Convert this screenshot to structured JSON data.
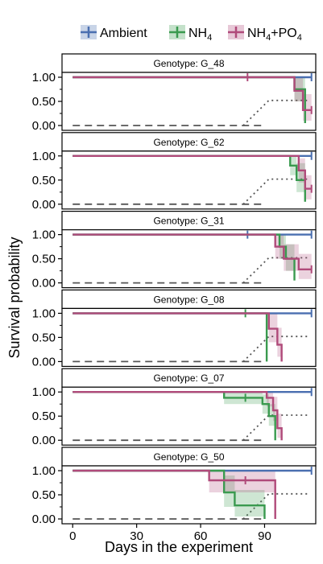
{
  "chart_data": {
    "type": "line",
    "subtype": "kaplan-meier survival step curves, faceted",
    "xlabel": "Days in the experiment",
    "ylabel": "Survival probability",
    "xlim": [
      -5,
      114
    ],
    "ylim": [
      -0.1,
      1.1
    ],
    "x_ticks": [
      "0",
      "30",
      "60",
      "90"
    ],
    "x_tick_values": [
      0,
      30,
      60,
      90
    ],
    "y_ticks": [
      "0.00",
      "0.50",
      "1.00"
    ],
    "y_tick_values": [
      0,
      0.5,
      1.0
    ],
    "legend": {
      "placement": "top",
      "items": [
        {
          "key": "ambient",
          "label": "Ambient",
          "sub": "",
          "plus": "",
          "sub2": "",
          "color": "#4a6fb0"
        },
        {
          "key": "nh4",
          "label": "NH",
          "sub": "4",
          "plus": "",
          "sub2": "",
          "color": "#3a9a4f"
        },
        {
          "key": "nh4po4",
          "label": "NH",
          "sub": "4",
          "plus": "+PO",
          "sub2": "4",
          "color": "#b04a7a"
        }
      ]
    },
    "reference_line": {
      "style": "dotted",
      "color": "#555555",
      "x": [
        80,
        92,
        110
      ],
      "y": [
        0,
        0.52,
        0.52
      ]
    },
    "censored_baseline": {
      "style": "dashed",
      "color": "#555555",
      "x": [
        0,
        90
      ],
      "y": 0
    },
    "facets": [
      {
        "strip": "Genotype: G_48",
        "series": [
          {
            "name": "Ambient",
            "x": [
              0,
              112
            ],
            "y": [
              1.0,
              1.0
            ],
            "censor": [
              112
            ]
          },
          {
            "name": "NH4",
            "x": [
              0,
              104,
              109
            ],
            "y": [
              1.0,
              0.75,
              0.05
            ],
            "band_lo": [
              1.0,
              0.5,
              0.0
            ],
            "band_hi": [
              1.0,
              1.0,
              0.3
            ],
            "censor": []
          },
          {
            "name": "NH4+PO4",
            "x": [
              0,
              104,
              108,
              112
            ],
            "y": [
              1.0,
              0.72,
              0.32,
              0.32
            ],
            "band_lo": [
              1.0,
              0.5,
              0.1,
              0.1
            ],
            "band_hi": [
              1.0,
              1.0,
              0.65,
              0.65
            ],
            "censor": [
              82,
              112
            ]
          }
        ]
      },
      {
        "strip": "Genotype: G_62",
        "series": [
          {
            "name": "Ambient",
            "x": [
              0,
              112
            ],
            "y": [
              1.0,
              1.0
            ],
            "censor": [
              112
            ]
          },
          {
            "name": "NH4",
            "x": [
              0,
              102,
              105,
              109
            ],
            "y": [
              1.0,
              0.8,
              0.5,
              0.05
            ],
            "band_lo": [
              1.0,
              0.6,
              0.25,
              0.0
            ],
            "band_hi": [
              1.0,
              1.0,
              0.85,
              0.3
            ],
            "censor": []
          },
          {
            "name": "NH4+PO4",
            "x": [
              0,
              106,
              109,
              112
            ],
            "y": [
              1.0,
              0.7,
              0.32,
              0.32
            ],
            "band_lo": [
              1.0,
              0.45,
              0.1,
              0.1
            ],
            "band_hi": [
              1.0,
              0.95,
              0.6,
              0.6
            ],
            "censor": [
              112
            ]
          }
        ]
      },
      {
        "strip": "Genotype: G_31",
        "series": [
          {
            "name": "Ambient",
            "x": [
              0,
              112
            ],
            "y": [
              1.0,
              1.0
            ],
            "censor": [
              82,
              112
            ]
          },
          {
            "name": "NH4",
            "x": [
              0,
              97,
              100,
              104
            ],
            "y": [
              1.0,
              0.75,
              0.5,
              0.05
            ],
            "band_lo": [
              1.0,
              0.5,
              0.25,
              0.0
            ],
            "band_hi": [
              1.0,
              1.0,
              0.8,
              0.3
            ],
            "censor": []
          },
          {
            "name": "NH4+PO4",
            "x": [
              0,
              95,
              99,
              106,
              112
            ],
            "y": [
              1.0,
              0.75,
              0.5,
              0.28,
              0.28
            ],
            "band_lo": [
              1.0,
              0.5,
              0.25,
              0.08,
              0.08
            ],
            "band_hi": [
              1.0,
              1.0,
              0.8,
              0.6,
              0.6
            ],
            "censor": [
              112
            ]
          }
        ]
      },
      {
        "strip": "Genotype: G_08",
        "series": [
          {
            "name": "Ambient",
            "x": [
              0,
              112
            ],
            "y": [
              1.0,
              1.0
            ],
            "censor": [
              112
            ]
          },
          {
            "name": "NH4",
            "x": [
              0,
              91
            ],
            "y": [
              1.0,
              0.0
            ],
            "censor": [
              81
            ]
          },
          {
            "name": "NH4+PO4",
            "x": [
              0,
              92,
              96,
              98
            ],
            "y": [
              1.0,
              0.68,
              0.35,
              0.0
            ],
            "band_lo": [
              1.0,
              0.4,
              0.1,
              0.0
            ],
            "band_hi": [
              1.0,
              1.0,
              0.7,
              0.0
            ],
            "censor": []
          }
        ]
      },
      {
        "strip": "Genotype: G_07",
        "series": [
          {
            "name": "Ambient",
            "x": [
              0,
              112
            ],
            "y": [
              1.0,
              1.0
            ],
            "censor": [
              112
            ]
          },
          {
            "name": "NH4",
            "x": [
              0,
              71,
              89,
              92,
              95
            ],
            "y": [
              1.0,
              0.88,
              0.75,
              0.5,
              0.0
            ],
            "band_lo": [
              1.0,
              0.75,
              0.55,
              0.3,
              0.0
            ],
            "band_hi": [
              1.0,
              1.0,
              0.95,
              0.75,
              0.0
            ],
            "censor": [
              81
            ]
          },
          {
            "name": "NH4+PO4",
            "x": [
              0,
              91,
              94,
              96,
              98
            ],
            "y": [
              1.0,
              0.88,
              0.62,
              0.25,
              0.0
            ],
            "band_lo": [
              1.0,
              0.7,
              0.4,
              0.05,
              0.0
            ],
            "band_hi": [
              1.0,
              1.0,
              0.9,
              0.55,
              0.0
            ],
            "censor": []
          }
        ]
      },
      {
        "strip": "Genotype: G_50",
        "series": [
          {
            "name": "Ambient",
            "x": [
              0,
              112
            ],
            "y": [
              1.0,
              1.0
            ],
            "censor": [
              112
            ]
          },
          {
            "name": "NH4",
            "x": [
              0,
              71,
              76,
              90
            ],
            "y": [
              1.0,
              0.55,
              0.28,
              0.0
            ],
            "band_lo": [
              1.0,
              0.25,
              0.05,
              0.0
            ],
            "band_hi": [
              1.0,
              0.9,
              0.6,
              0.0
            ],
            "censor": []
          },
          {
            "name": "NH4+PO4",
            "x": [
              0,
              64,
              95
            ],
            "y": [
              1.0,
              0.8,
              0.0
            ],
            "band_lo": [
              1.0,
              0.55,
              0.0
            ],
            "band_hi": [
              1.0,
              1.0,
              0.0
            ],
            "censor": [
              81
            ]
          }
        ]
      }
    ]
  }
}
